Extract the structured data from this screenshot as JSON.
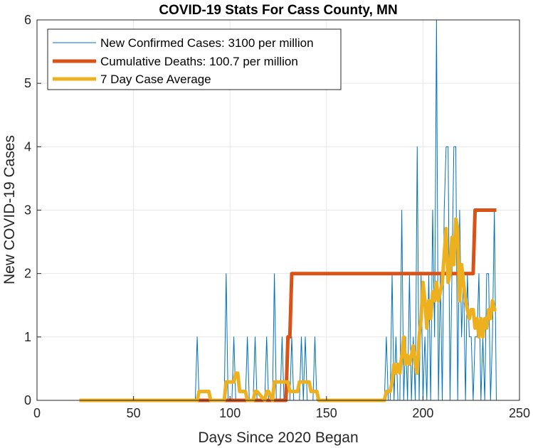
{
  "chart_data": {
    "type": "line",
    "title": "COVID-19 Stats For Cass County, MN",
    "xlabel": "Days Since 2020 Began",
    "ylabel": "New COVID-19 Cases",
    "xlim": [
      0,
      250
    ],
    "ylim": [
      0,
      6
    ],
    "xticks": [
      0,
      50,
      100,
      150,
      200,
      250
    ],
    "yticks": [
      0,
      1,
      2,
      3,
      4,
      5,
      6
    ],
    "grid": true,
    "legend_position": "top-left",
    "series": [
      {
        "name": "New Confirmed Cases: 3100 per million",
        "color": "#0072BD",
        "style": "thin",
        "x": [
          22,
          82,
          83,
          84,
          97,
          98,
          99,
          101,
          102,
          103,
          104,
          108,
          109,
          110,
          112,
          113,
          114,
          118,
          119,
          120,
          122,
          123,
          124,
          126,
          127,
          128,
          131,
          132,
          133,
          134,
          136,
          137,
          138,
          139,
          140,
          141,
          143,
          144,
          145,
          146,
          180,
          181,
          182,
          183,
          184,
          185,
          186,
          187,
          188,
          189,
          190,
          191,
          192,
          193,
          194,
          195,
          196,
          197,
          198,
          199,
          200,
          201,
          202,
          203,
          204,
          205,
          206,
          207,
          208,
          209,
          210,
          211,
          212,
          213,
          214,
          215,
          216,
          217,
          218,
          219,
          220,
          221,
          222,
          223,
          224,
          225,
          226,
          227,
          228,
          229,
          230,
          231,
          232,
          233,
          234,
          235,
          236,
          237,
          238
        ],
        "y": [
          0,
          0,
          1,
          0,
          0,
          2,
          0,
          0,
          1,
          0,
          0,
          0,
          1,
          0,
          0,
          1,
          0,
          0,
          1,
          0,
          0,
          2,
          0,
          0,
          1,
          0,
          0,
          1,
          0,
          0,
          0,
          1,
          0,
          1,
          0,
          0,
          0,
          1,
          0,
          0,
          0,
          1,
          0,
          0,
          2,
          0,
          1,
          0,
          0,
          3,
          0,
          1,
          0,
          2,
          0,
          1,
          0,
          4,
          0,
          2,
          0,
          1,
          0,
          2,
          0,
          3,
          1,
          6,
          0,
          2,
          0,
          3,
          4,
          4,
          0,
          2,
          4,
          4,
          0,
          3,
          1,
          2,
          0,
          2,
          1,
          1,
          0,
          1,
          1,
          2,
          0,
          1,
          0,
          2,
          2,
          0,
          1,
          3,
          0
        ]
      },
      {
        "name": "Cumulative Deaths: 100.7 per million",
        "color": "#D95319",
        "style": "thick",
        "x": [
          22,
          129,
          130,
          131,
          132,
          226,
          227,
          238
        ],
        "y": [
          0,
          0,
          1,
          1,
          2,
          2,
          3,
          3
        ]
      },
      {
        "name": "7 Day Case Average",
        "color": "#EDB120",
        "style": "thick",
        "x": [
          22,
          83,
          84,
          89,
          90,
          97,
          98,
          102,
          103,
          104,
          105,
          108,
          109,
          112,
          113,
          114,
          118,
          119,
          120,
          122,
          123,
          130,
          131,
          134,
          135,
          136,
          141,
          142,
          145,
          146,
          150,
          151,
          180,
          181,
          182,
          183,
          184,
          185,
          186,
          187,
          188,
          189,
          190,
          191,
          192,
          193,
          194,
          195,
          196,
          197,
          198,
          199,
          200,
          201,
          202,
          203,
          204,
          205,
          206,
          207,
          208,
          209,
          210,
          211,
          212,
          213,
          214,
          215,
          216,
          217,
          218,
          219,
          220,
          221,
          222,
          223,
          224,
          225,
          226,
          227,
          228,
          229,
          230,
          231,
          232,
          233,
          234,
          235,
          236,
          237,
          238
        ],
        "y": [
          0,
          0,
          0.14,
          0.14,
          0,
          0,
          0.29,
          0.29,
          0.43,
          0.43,
          0.14,
          0.14,
          0,
          0,
          0.14,
          0.14,
          0,
          0.14,
          0.14,
          0,
          0.29,
          0.29,
          0.14,
          0.14,
          0.14,
          0.29,
          0.29,
          0.14,
          0.14,
          0,
          0,
          0,
          0,
          0.14,
          0.14,
          0.14,
          0.29,
          0.57,
          0.43,
          0.57,
          0.43,
          0.71,
          1,
          0.57,
          0.71,
          0.57,
          0.71,
          0.86,
          0.57,
          0.43,
          1,
          1.29,
          1.86,
          1.57,
          1.14,
          1.57,
          1.29,
          1.71,
          1.57,
          1.86,
          1.57,
          1.71,
          1.86,
          2.29,
          2.71,
          1.86,
          2,
          2.57,
          2.14,
          2.86,
          2.71,
          1.57,
          2.14,
          1.86,
          1.57,
          1.43,
          1.29,
          1.43,
          1.43,
          1.14,
          1.29,
          1,
          1.29,
          1,
          1.29,
          1.14,
          1.43,
          1.29,
          1.57,
          1.43,
          1.43
        ]
      }
    ]
  }
}
